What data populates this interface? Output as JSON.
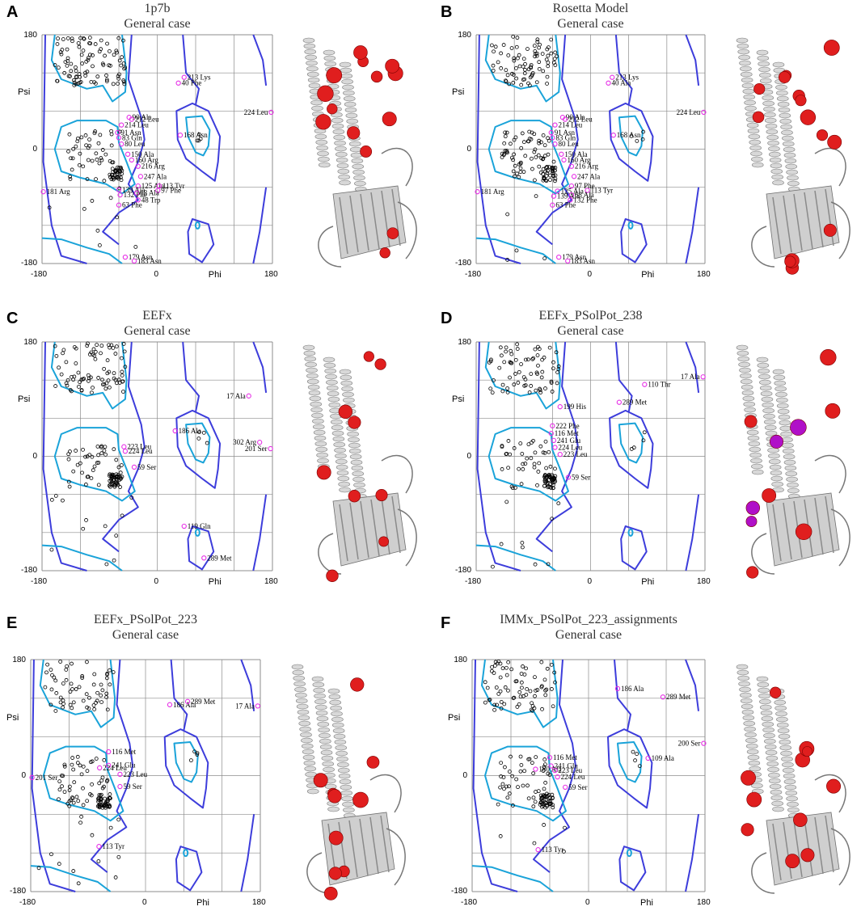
{
  "figure": {
    "colors": {
      "frame": "#8c8c8c",
      "allowed_contour": "#1aa3d9",
      "generous_contour": "#3d3ddb",
      "general_point": "#000000",
      "outlier_point": "#e62ee6",
      "outlier_sphere": "#e01e1e",
      "outlier_sphere_alt": "#b010c8",
      "cartoon": "#b8b8b8"
    },
    "panels": [
      {
        "label": "A",
        "title_lines": [
          "1p7b",
          "General case"
        ],
        "chart_data": {
          "type": "scatter",
          "xlabel": "Phi",
          "ylabel": "Psi",
          "xlim": [
            -180,
            180
          ],
          "ylim": [
            -180,
            180
          ],
          "x_ticks": [
            "-180",
            "0",
            "180"
          ],
          "y_ticks": [
            "180",
            "0",
            "-180"
          ],
          "grid": true,
          "outliers": [
            {
              "label": "213 Lys",
              "phi": 42,
              "psi": 113
            },
            {
              "label": "40 Phe",
              "phi": 33,
              "psi": 104
            },
            {
              "label": "224 Leu",
              "phi": 178,
              "psi": 58
            },
            {
              "label": "90 Ala",
              "phi": -44,
              "psi": 50
            },
            {
              "label": "212 Leu",
              "phi": -40,
              "psi": 47
            },
            {
              "label": "214 Leu",
              "phi": -56,
              "psi": 38
            },
            {
              "label": "91 Asn",
              "phi": -62,
              "psi": 26
            },
            {
              "label": "83 Gln",
              "phi": -60,
              "psi": 18
            },
            {
              "label": "80 Leu",
              "phi": -56,
              "psi": 8
            },
            {
              "label": "168 Asn",
              "phi": 36,
              "psi": 22
            },
            {
              "label": "150 Ala",
              "phi": -46,
              "psi": -8
            },
            {
              "label": "160 Arg",
              "phi": -40,
              "psi": -17
            },
            {
              "label": "216 Arg",
              "phi": -30,
              "psi": -27
            },
            {
              "label": "247 Ala",
              "phi": -26,
              "psi": -43
            },
            {
              "label": "125 Ala",
              "phi": -30,
              "psi": -58
            },
            {
              "label": "113 Tyr",
              "phi": 3,
              "psi": -58
            },
            {
              "label": "97 Phe",
              "phi": 1,
              "psi": -65
            },
            {
              "label": "139 Ala",
              "phi": -60,
              "psi": -64
            },
            {
              "label": "68 Ala",
              "phi": -32,
              "psi": -69
            },
            {
              "label": "132 Phe",
              "phi": -58,
              "psi": -72
            },
            {
              "label": "48 Trp",
              "phi": -30,
              "psi": -80
            },
            {
              "label": "63 Phe",
              "phi": -60,
              "psi": -88
            },
            {
              "label": "181 Arg",
              "phi": -178,
              "psi": -67
            },
            {
              "label": "179 Asn",
              "phi": -50,
              "psi": -170
            },
            {
              "label": "183 Asn",
              "phi": -36,
              "psi": -176
            }
          ],
          "general_count": 150,
          "helix_cluster_count": 30
        }
      },
      {
        "label": "B",
        "title_lines": [
          "Rosetta Model",
          "General case"
        ],
        "chart_data": {
          "type": "scatter",
          "xlabel": "Phi",
          "ylabel": "Psi",
          "xlim": [
            -180,
            180
          ],
          "ylim": [
            -180,
            180
          ],
          "x_ticks": [
            "-180",
            "0",
            "180"
          ],
          "y_ticks": [
            "180",
            "0",
            "-180"
          ],
          "grid": true,
          "outliers": [
            {
              "label": "213 Lys",
              "phi": 34,
              "psi": 113
            },
            {
              "label": "40 Ala",
              "phi": 28,
              "psi": 104
            },
            {
              "label": "224 Leu",
              "phi": 178,
              "psi": 58
            },
            {
              "label": "90 Ala",
              "phi": -44,
              "psi": 50
            },
            {
              "label": "212 Leu",
              "phi": -40,
              "psi": 47
            },
            {
              "label": "214 Leu",
              "phi": -56,
              "psi": 38
            },
            {
              "label": "91 Asn",
              "phi": -62,
              "psi": 26
            },
            {
              "label": "83 Gln",
              "phi": -60,
              "psi": 18
            },
            {
              "label": "80 Leu",
              "phi": -56,
              "psi": 8
            },
            {
              "label": "168 Asn",
              "phi": 36,
              "psi": 22
            },
            {
              "label": "150 Ala",
              "phi": -46,
              "psi": -8
            },
            {
              "label": "160 Arg",
              "phi": -42,
              "psi": -17
            },
            {
              "label": "216 Arg",
              "phi": -30,
              "psi": -27
            },
            {
              "label": "247 Ala",
              "phi": -26,
              "psi": -43
            },
            {
              "label": "97 Phe",
              "phi": -30,
              "psi": -58
            },
            {
              "label": "113 Tyr",
              "phi": -5,
              "psi": -65
            },
            {
              "label": "125 Ala",
              "phi": -52,
              "psi": -66
            },
            {
              "label": "68 Ala",
              "phi": -30,
              "psi": -72
            },
            {
              "label": "139 Ala",
              "phi": -58,
              "psi": -74
            },
            {
              "label": "132 Phe",
              "phi": -32,
              "psi": -80
            },
            {
              "label": "63 Phe",
              "phi": -60,
              "psi": -88
            },
            {
              "label": "181 Arg",
              "phi": -178,
              "psi": -67
            },
            {
              "label": "179 Asn",
              "phi": -50,
              "psi": -170
            },
            {
              "label": "183 Asn",
              "phi": -36,
              "psi": -176
            }
          ],
          "general_count": 150,
          "helix_cluster_count": 30
        }
      },
      {
        "label": "C",
        "title_lines": [
          "EEFx",
          "General case"
        ],
        "chart_data": {
          "type": "scatter",
          "xlabel": "Phi",
          "ylabel": "Psi",
          "xlim": [
            -180,
            180
          ],
          "ylim": [
            -180,
            180
          ],
          "x_ticks": [
            "-180",
            "0",
            "180"
          ],
          "y_ticks": [
            "180",
            "0",
            "-180"
          ],
          "grid": true,
          "outliers": [
            {
              "label": "17 Ala",
              "phi": 143,
              "psi": 95
            },
            {
              "label": "186 Ala",
              "phi": 28,
              "psi": 40
            },
            {
              "label": "302 Arg",
              "phi": 160,
              "psi": 22
            },
            {
              "label": "201 Ser",
              "phi": 177,
              "psi": 12
            },
            {
              "label": "223 Leu",
              "phi": -52,
              "psi": 15
            },
            {
              "label": "224 Leu",
              "phi": -50,
              "psi": 8
            },
            {
              "label": "59 Ser",
              "phi": -36,
              "psi": -17
            },
            {
              "label": "119 Gln",
              "phi": 42,
              "psi": -110
            },
            {
              "label": "289 Met",
              "phi": 73,
              "psi": -160
            }
          ],
          "general_count": 130,
          "helix_cluster_count": 40
        }
      },
      {
        "label": "D",
        "title_lines": [
          "EEFx_PSolPot_238",
          "General case"
        ],
        "chart_data": {
          "type": "scatter",
          "xlabel": "Phi",
          "ylabel": "Psi",
          "xlim": [
            -180,
            180
          ],
          "ylim": [
            -180,
            180
          ],
          "x_ticks": [
            "-180",
            "0",
            "180"
          ],
          "y_ticks": [
            "180",
            "0",
            "-180"
          ],
          "grid": true,
          "outliers": [
            {
              "label": "17 Ala",
              "phi": 177,
              "psi": 125
            },
            {
              "label": "110 Thr",
              "phi": 85,
              "psi": 113
            },
            {
              "label": "289 Met",
              "phi": 45,
              "psi": 85
            },
            {
              "label": "199 His",
              "phi": -48,
              "psi": 78
            },
            {
              "label": "222 Phe",
              "phi": -60,
              "psi": 48
            },
            {
              "label": "116 Met",
              "phi": -62,
              "psi": 36
            },
            {
              "label": "241 Glu",
              "phi": -58,
              "psi": 25
            },
            {
              "label": "224 Leu",
              "phi": -56,
              "psi": 14
            },
            {
              "label": "223 Leu",
              "phi": -48,
              "psi": 3
            },
            {
              "label": "59 Ser",
              "phi": -35,
              "psi": -33
            }
          ],
          "general_count": 120,
          "helix_cluster_count": 40
        }
      },
      {
        "label": "E",
        "title_lines": [
          "EEFx_PSolPot_223",
          "General case"
        ],
        "chart_data": {
          "type": "scatter",
          "xlabel": "Phi",
          "ylabel": "Psi",
          "xlim": [
            -180,
            180
          ],
          "ylim": [
            -180,
            180
          ],
          "x_ticks": [
            "-180",
            "0",
            "180"
          ],
          "y_ticks": [
            "180",
            "0",
            "-180"
          ],
          "grid": true,
          "outliers": [
            {
              "label": "186 Ala",
              "phi": 38,
              "psi": 110
            },
            {
              "label": "289 Met",
              "phi": 66,
              "psi": 115
            },
            {
              "label": "17 Ala",
              "phi": 176,
              "psi": 108
            },
            {
              "label": "116 Met",
              "phi": -58,
              "psi": 37
            },
            {
              "label": "241 Glu",
              "phi": -58,
              "psi": 16
            },
            {
              "label": "224 Leu",
              "phi": -72,
              "psi": 12
            },
            {
              "label": "223 Leu",
              "phi": -40,
              "psi": 2
            },
            {
              "label": "59 Ser",
              "phi": -40,
              "psi": -17
            },
            {
              "label": "201 Ser",
              "phi": -178,
              "psi": -3
            },
            {
              "label": "113 Tyr",
              "phi": -73,
              "psi": -110
            }
          ],
          "general_count": 120,
          "helix_cluster_count": 40
        }
      },
      {
        "label": "F",
        "title_lines": [
          "IMMx_PSolPot_223_assignments",
          "General case"
        ],
        "chart_data": {
          "type": "scatter",
          "xlabel": "Phi",
          "ylabel": "Psi",
          "xlim": [
            -180,
            180
          ],
          "ylim": [
            -180,
            180
          ],
          "x_ticks": [
            "-180",
            "0",
            "180"
          ],
          "y_ticks": [
            "180",
            "0",
            "-180"
          ],
          "grid": true,
          "outliers": [
            {
              "label": "186 Ala",
              "phi": 45,
              "psi": 135
            },
            {
              "label": "289 Met",
              "phi": 115,
              "psi": 122
            },
            {
              "label": "200 Ser",
              "phi": 178,
              "psi": 50
            },
            {
              "label": "109 Ala",
              "phi": 92,
              "psi": 27
            },
            {
              "label": "116 Met",
              "phi": -60,
              "psi": 28
            },
            {
              "label": "241 Glu",
              "phi": -58,
              "psi": 15
            },
            {
              "label": "180 Ala",
              "phi": -82,
              "psi": 10
            },
            {
              "label": "223 Leu",
              "phi": -52,
              "psi": 8
            },
            {
              "label": "224 Leu",
              "phi": -48,
              "psi": -2
            },
            {
              "label": "59 Ser",
              "phi": -36,
              "psi": -18
            },
            {
              "label": "113 Tyr",
              "phi": -78,
              "psi": -115
            }
          ],
          "general_count": 120,
          "helix_cluster_count": 40
        }
      }
    ]
  }
}
